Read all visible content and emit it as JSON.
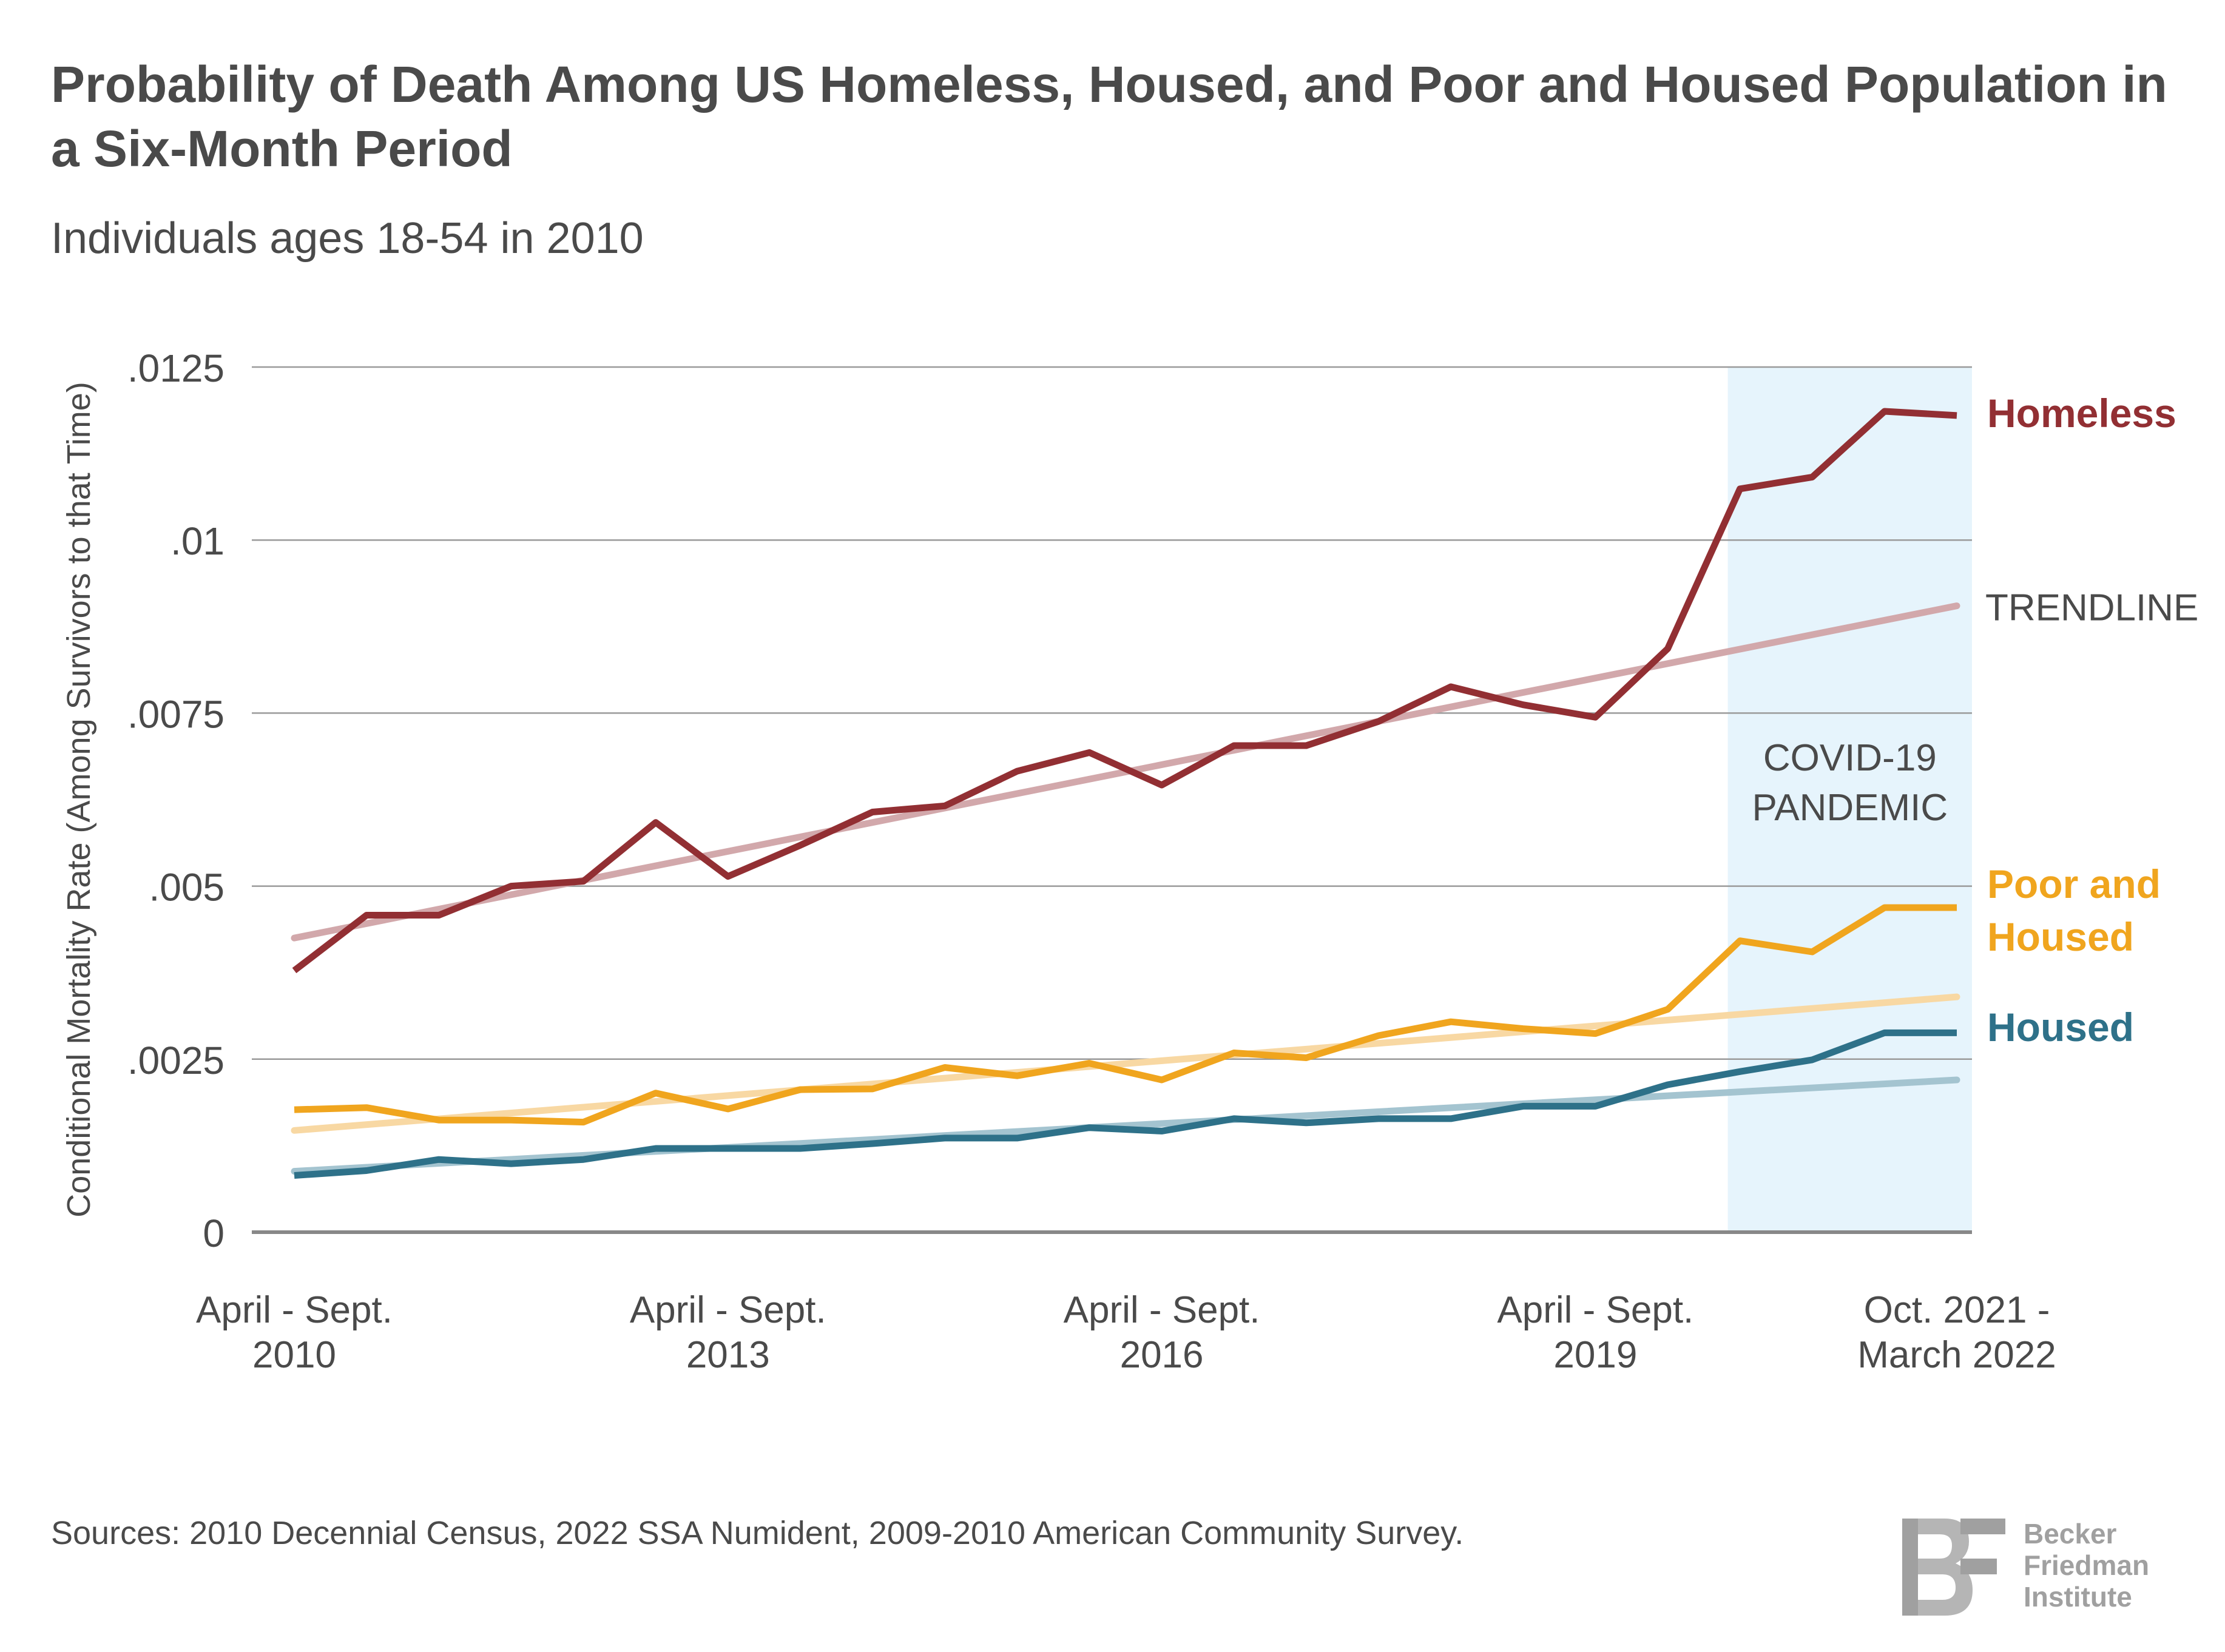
{
  "title": "Probability of Death Among US Homeless, Housed, and Poor and Housed Population in a Six-Month Period",
  "subtitle": "Individuals ages 18-54 in 2010",
  "source": "Sources: 2010 Decennial Census, 2022 SSA Numident, 2009-2010 American Community Survey.",
  "logo": {
    "line1": "Becker",
    "line2": "Friedman",
    "line3": "Institute"
  },
  "colors": {
    "homeless": "#922f33",
    "poor_housed": "#f0a51e",
    "housed": "#2e7189",
    "homeless_trend": "#d2a8ab",
    "poor_trend": "#f8d8a3",
    "housed_trend": "#a4c4d0",
    "pandemic_shade": "#e6f4fc",
    "grid": "#9a9a9a",
    "text": "#4a4a4a"
  },
  "chart_data": {
    "type": "line",
    "ylabel": "Conditional Mortality Rate (Among Survivors to that Time)",
    "ylim": [
      0,
      0.0125
    ],
    "yticks": [
      {
        "value": 0,
        "label": "0"
      },
      {
        "value": 0.0025,
        "label": ".0025"
      },
      {
        "value": 0.005,
        "label": ".005"
      },
      {
        "value": 0.0075,
        "label": ".0075"
      },
      {
        "value": 0.01,
        "label": ".01"
      },
      {
        "value": 0.0125,
        "label": ".0125"
      }
    ],
    "x_periods": 24,
    "x_tick_labels": [
      {
        "period": 0,
        "line1": "April - Sept.",
        "line2": "2010"
      },
      {
        "period": 6,
        "line1": "April - Sept.",
        "line2": "2013"
      },
      {
        "period": 12,
        "line1": "April - Sept.",
        "line2": "2016"
      },
      {
        "period": 18,
        "line1": "April - Sept.",
        "line2": "2019"
      },
      {
        "period": 23,
        "line1": "Oct. 2021 -",
        "line2": "March 2022"
      }
    ],
    "shaded_region": {
      "from_period": 20,
      "to_period": 23,
      "label_line1": "COVID-19",
      "label_line2": "PANDEMIC"
    },
    "series": [
      {
        "name": "Homeless",
        "key": "homeless",
        "values": [
          0.00378,
          0.00458,
          0.00458,
          0.005,
          0.00507,
          0.00592,
          0.00514,
          0.00559,
          0.00607,
          0.00616,
          0.00666,
          0.00693,
          0.00646,
          0.00703,
          0.00703,
          0.00738,
          0.00788,
          0.00762,
          0.00744,
          0.00843,
          0.01074,
          0.01091,
          0.01186,
          0.0118
        ],
        "trendline": [
          0.00425,
          0.00905
        ]
      },
      {
        "name": "Poor and Housed",
        "key": "poor_housed",
        "values": [
          0.00177,
          0.0018,
          0.00162,
          0.00162,
          0.00159,
          0.00201,
          0.00178,
          0.00206,
          0.00207,
          0.00238,
          0.00226,
          0.00244,
          0.0022,
          0.00259,
          0.00252,
          0.00284,
          0.00304,
          0.00294,
          0.00287,
          0.00322,
          0.00421,
          0.00405,
          0.00469,
          0.00469
        ],
        "trendline": [
          0.00147,
          0.0034
        ]
      },
      {
        "name": "Housed",
        "key": "housed",
        "values": [
          0.00082,
          0.00089,
          0.00105,
          0.00099,
          0.00105,
          0.00121,
          0.00121,
          0.00121,
          0.00128,
          0.00136,
          0.00136,
          0.00151,
          0.00146,
          0.00164,
          0.00158,
          0.00164,
          0.00164,
          0.00182,
          0.00182,
          0.00213,
          0.00232,
          0.00249,
          0.00288,
          0.00288
        ],
        "trendline": [
          0.00088,
          0.0022
        ]
      }
    ],
    "trendline_label": "TRENDLINE",
    "end_labels": {
      "homeless": [
        "Homeless"
      ],
      "poor_housed": [
        "Poor and",
        "Housed"
      ],
      "housed": [
        "Housed"
      ]
    },
    "grid": true,
    "legend": "right-end labels"
  }
}
